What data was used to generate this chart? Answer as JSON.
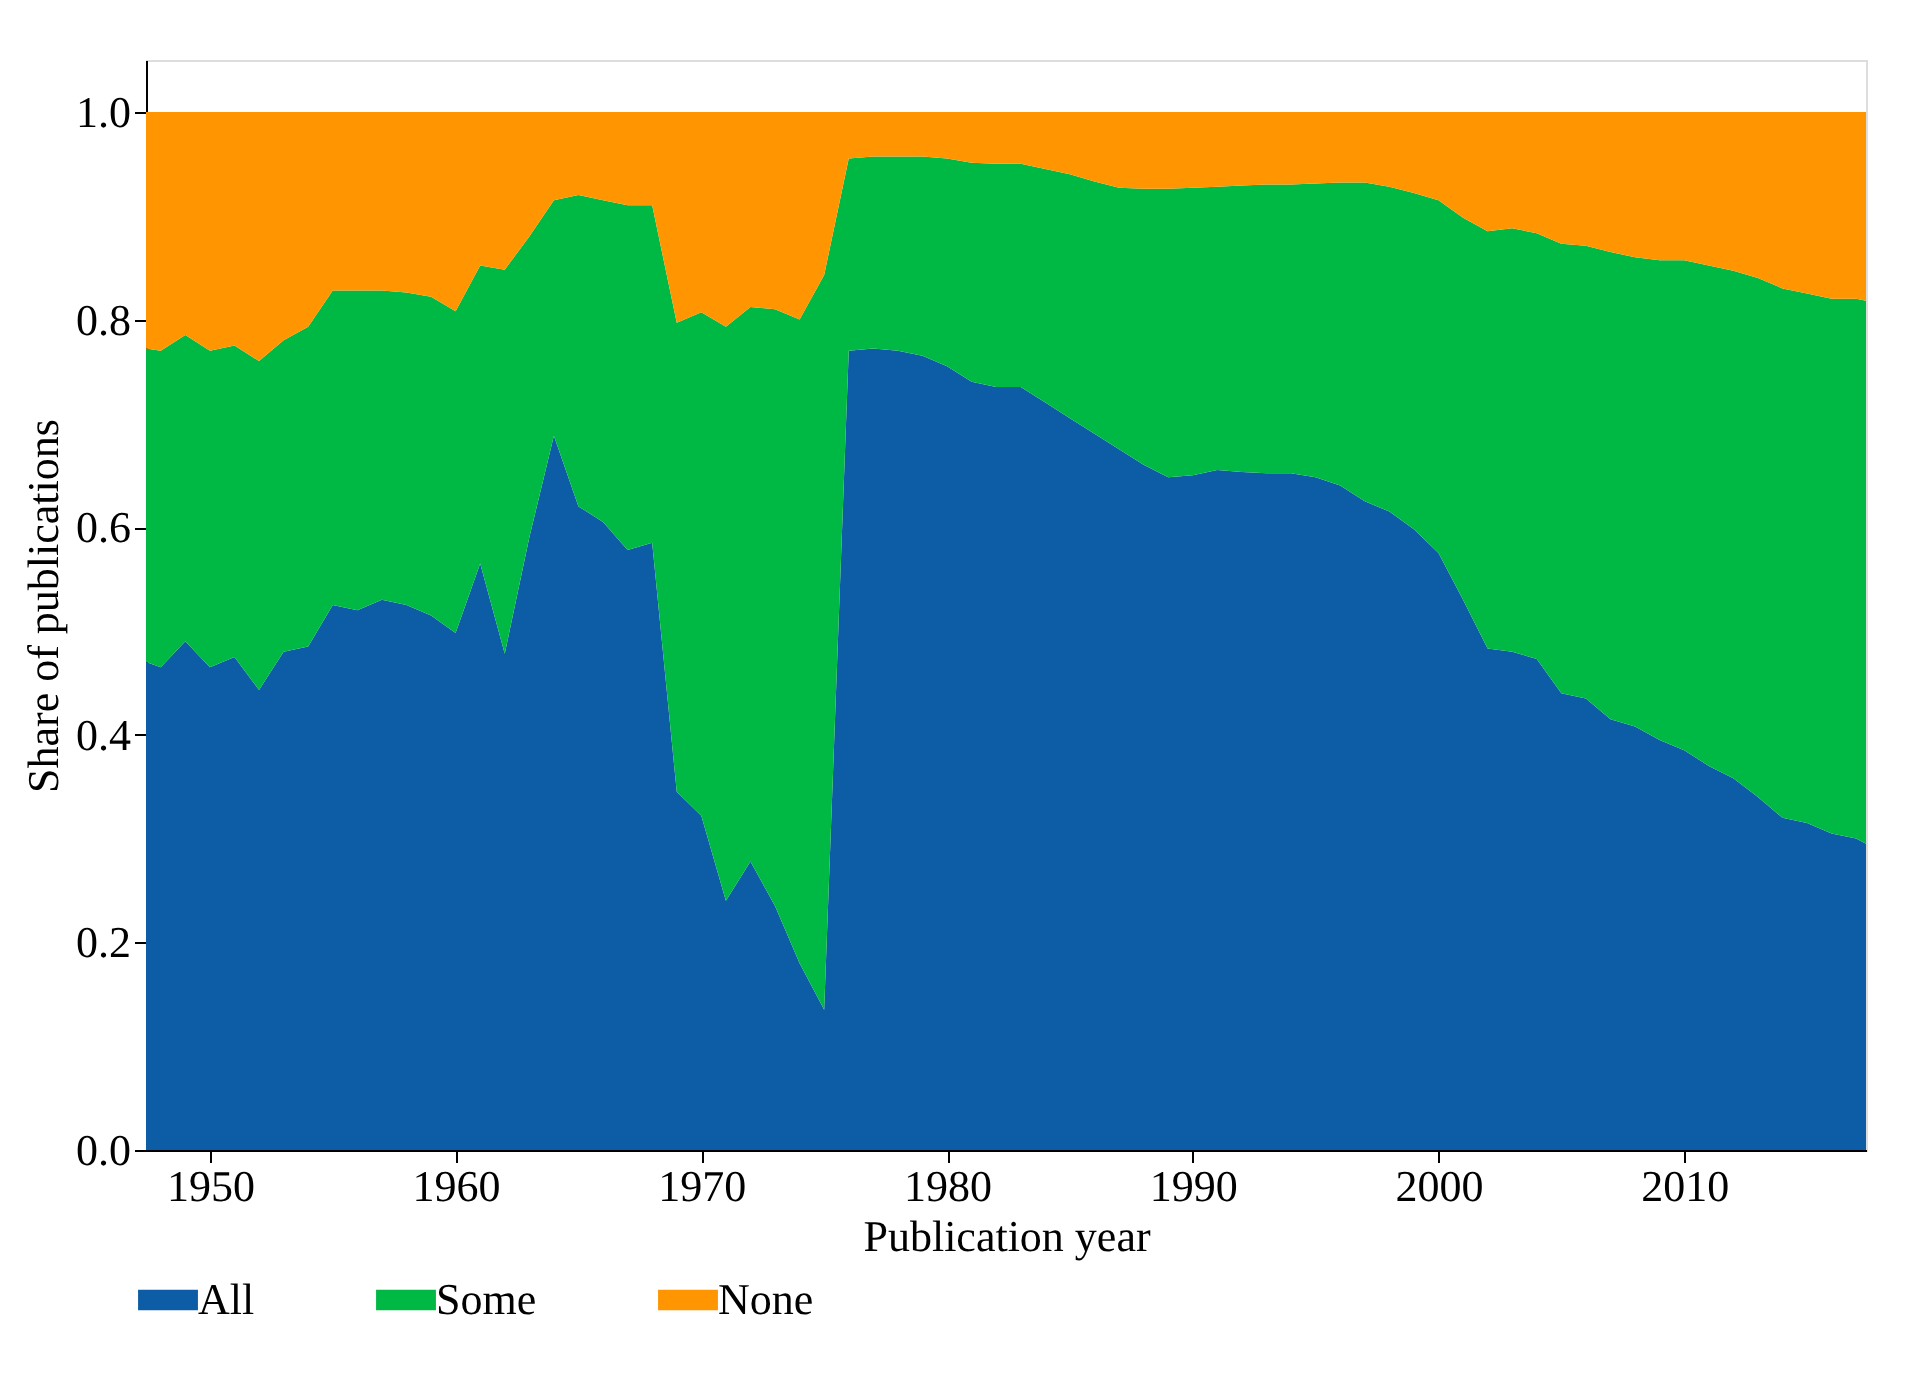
{
  "chart_data": {
    "type": "area",
    "stacked": true,
    "xlabel": "Publication year",
    "ylabel": "Share of publications",
    "legend": "bottom",
    "grid": false,
    "x": [
      1947.4,
      1948,
      1949,
      1950,
      1951,
      1952,
      1953,
      1954,
      1955,
      1956,
      1957,
      1958,
      1959,
      1960,
      1961,
      1962,
      1963,
      1964,
      1965,
      1966,
      1967,
      1968,
      1969,
      1970,
      1971,
      1972,
      1973,
      1974,
      1975,
      1976,
      1977,
      1978,
      1979,
      1980,
      1981,
      1982,
      1983,
      1984,
      1985,
      1986,
      1987,
      1988,
      1989,
      1990,
      1991,
      1992,
      1993,
      1994,
      1995,
      1996,
      1997,
      1998,
      1999,
      2000,
      2001,
      2002,
      2003,
      2004,
      2005,
      2006,
      2007,
      2008,
      2009,
      2010,
      2011,
      2012,
      2013,
      2014,
      2015,
      2016,
      2017,
      2017.4
    ],
    "xlim": [
      1947.4,
      2017.4
    ],
    "xticks": [
      1950,
      1960,
      1970,
      1980,
      1990,
      2000,
      2010
    ],
    "ylim": [
      0,
      1.05
    ],
    "yticks": [
      {
        "value": 0,
        "label": "0.0"
      },
      {
        "value": 0.2,
        "label": "0.2"
      },
      {
        "value": 0.4,
        "label": "0.4"
      },
      {
        "value": 0.6,
        "label": "0.6"
      },
      {
        "value": 0.8,
        "label": "0.8"
      },
      {
        "value": 1,
        "label": "1.0"
      }
    ],
    "series": [
      {
        "name": "All",
        "color": "#0c5da5",
        "values": [
          0.47,
          0.465,
          0.49,
          0.465,
          0.475,
          0.443,
          0.48,
          0.485,
          0.525,
          0.52,
          0.53,
          0.525,
          0.515,
          0.498,
          0.565,
          0.478,
          0.59,
          0.688,
          0.62,
          0.605,
          0.578,
          0.585,
          0.345,
          0.322,
          0.24,
          0.278,
          0.235,
          0.18,
          0.135,
          0.77,
          0.772,
          0.77,
          0.765,
          0.755,
          0.74,
          0.735,
          0.735,
          0.72,
          0.705,
          0.69,
          0.675,
          0.66,
          0.648,
          0.65,
          0.655,
          0.653,
          0.652,
          0.652,
          0.648,
          0.64,
          0.625,
          0.615,
          0.598,
          0.575,
          0.53,
          0.483,
          0.48,
          0.473,
          0.44,
          0.435,
          0.415,
          0.408,
          0.395,
          0.385,
          0.37,
          0.358,
          0.34,
          0.32,
          0.315,
          0.305,
          0.3,
          0.295
        ]
      },
      {
        "name": "Some",
        "color": "#00b945",
        "values": [
          0.302,
          0.305,
          0.295,
          0.305,
          0.3,
          0.317,
          0.3,
          0.308,
          0.303,
          0.308,
          0.298,
          0.301,
          0.307,
          0.31,
          0.287,
          0.37,
          0.29,
          0.227,
          0.3,
          0.31,
          0.332,
          0.325,
          0.452,
          0.485,
          0.553,
          0.534,
          0.575,
          0.62,
          0.708,
          0.185,
          0.185,
          0.187,
          0.192,
          0.2,
          0.211,
          0.215,
          0.215,
          0.225,
          0.235,
          0.243,
          0.252,
          0.266,
          0.278,
          0.277,
          0.273,
          0.276,
          0.278,
          0.278,
          0.283,
          0.292,
          0.307,
          0.313,
          0.324,
          0.34,
          0.368,
          0.402,
          0.408,
          0.41,
          0.433,
          0.436,
          0.45,
          0.452,
          0.462,
          0.472,
          0.482,
          0.489,
          0.5,
          0.51,
          0.51,
          0.515,
          0.52,
          0.523
        ]
      },
      {
        "name": "None",
        "color": "#ff9500",
        "values": [
          0.228,
          0.23,
          0.215,
          0.23,
          0.225,
          0.24,
          0.22,
          0.207,
          0.172,
          0.172,
          0.172,
          0.174,
          0.178,
          0.192,
          0.148,
          0.152,
          0.12,
          0.085,
          0.08,
          0.085,
          0.09,
          0.09,
          0.203,
          0.193,
          0.207,
          0.188,
          0.19,
          0.2,
          0.157,
          0.045,
          0.043,
          0.043,
          0.043,
          0.045,
          0.049,
          0.05,
          0.05,
          0.055,
          0.06,
          0.067,
          0.073,
          0.074,
          0.074,
          0.073,
          0.072,
          0.071,
          0.07,
          0.07,
          0.069,
          0.068,
          0.068,
          0.072,
          0.078,
          0.085,
          0.102,
          0.115,
          0.112,
          0.117,
          0.127,
          0.129,
          0.135,
          0.14,
          0.143,
          0.143,
          0.148,
          0.153,
          0.16,
          0.17,
          0.175,
          0.18,
          0.18,
          0.182
        ]
      }
    ]
  }
}
